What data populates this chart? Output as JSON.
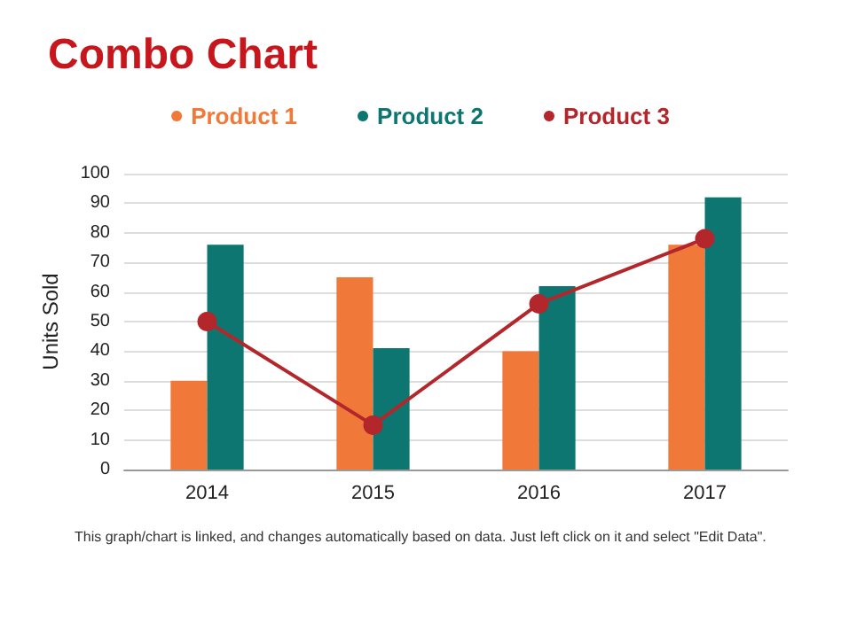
{
  "chart_data": {
    "type": "bar",
    "title": "Combo Chart",
    "ylabel": "Units Sold",
    "categories": [
      "2014",
      "2015",
      "2016",
      "2017"
    ],
    "series": [
      {
        "name": "Product 1",
        "color": "#f07838",
        "values": [
          30,
          65,
          40,
          76
        ]
      },
      {
        "name": "Product 2",
        "color": "#0d7670",
        "values": [
          76,
          41,
          62,
          92
        ]
      },
      {
        "name": "Product 3",
        "type": "line",
        "color": "#b3262b",
        "values": [
          50,
          15,
          56,
          78
        ]
      }
    ],
    "ylim": [
      0,
      100
    ],
    "yticks": [
      0,
      10,
      20,
      30,
      40,
      50,
      60,
      70,
      80,
      90,
      100
    ],
    "grid": "y",
    "legend": "top",
    "marker": "circle",
    "annotations": [
      "This graph/chart is linked, and changes automatically based on data. Just left click on it and select \"Edit Data\"."
    ]
  }
}
